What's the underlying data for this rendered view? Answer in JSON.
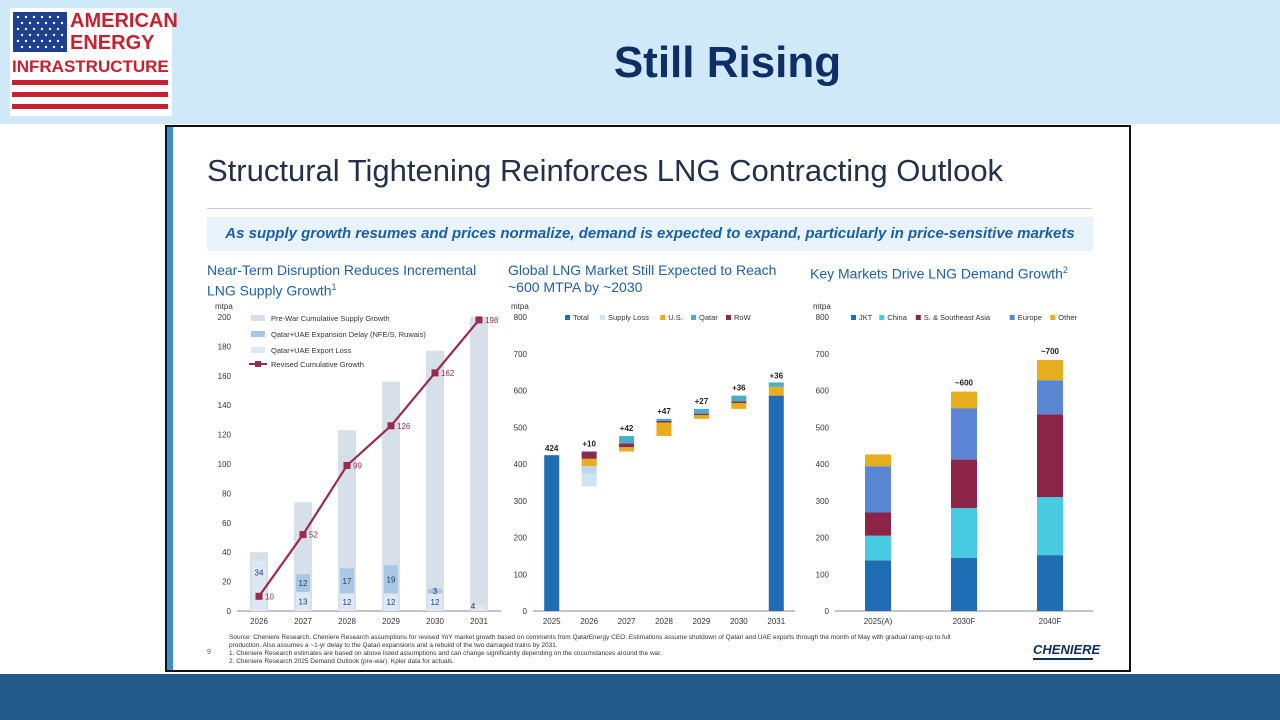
{
  "logo": {
    "line1": "AMERICAN",
    "line2": "ENERGY",
    "line3": "INFRASTRUCTURE"
  },
  "slide_title": "Still Rising",
  "frame": {
    "title": "Structural Tightening Reinforces LNG Contracting Outlook",
    "subtitle": "As supply growth resumes and prices normalize, demand is expected to expand, particularly in price-sensitive markets",
    "page_number": "9",
    "brand": "CHENIERE",
    "footnotes": [
      "Source:   Cheniere Research. Cheniere Research assumptions for revised YoY market growth based on comments from QatarEnergy CEO. Estimations assume shutdown of Qatari and UAE exports through the month of May with gradual ramp-up to full",
      "              production. Also assumes a ~1-yr delay to the Qatari expansions and a rebuild of the two damaged trains by 2031.",
      "1.           Cheniere Research estimates are based on above listed assumptions and can change significantly depending on the circumstances around the war.",
      "2.           Cheniere Research 2025 Demand Outlook (pre-war). Kpler data for actuals."
    ]
  },
  "chart_data": [
    {
      "type": "bar",
      "title_line1": "Near-Term Disruption Reduces Incremental",
      "title_line2": "LNG Supply Growth",
      "title_sup": "1",
      "ylabel": "mtpa",
      "ylim": [
        0,
        200
      ],
      "yticks": [
        0,
        20,
        40,
        60,
        80,
        100,
        120,
        140,
        160,
        180,
        200
      ],
      "categories": [
        "2026",
        "2027",
        "2028",
        "2029",
        "2030",
        "2031"
      ],
      "legend": [
        "Pre-War Cumulative Supply Growth",
        "Qatar+UAE Expansion Delay (NFE/S, Ruwais)",
        "Qatar+UAE Export Loss",
        "Revised Cumulative Growth"
      ],
      "series": [
        {
          "name": "Pre-War Cumulative Supply Growth",
          "values": [
            40,
            74,
            123,
            156,
            177,
            200
          ]
        },
        {
          "name": "Qatar+UAE Expansion Delay (NFE/S, Ruwais)",
          "values": [
            0,
            12,
            17,
            19,
            3,
            0
          ]
        },
        {
          "name": "Qatar+UAE Export Loss",
          "values": [
            34,
            13,
            12,
            12,
            12,
            4
          ]
        },
        {
          "name": "Revised Cumulative Growth",
          "values": [
            10,
            52,
            99,
            126,
            162,
            198
          ]
        }
      ],
      "bar_labels_delay": [
        "",
        "12",
        "17",
        "19",
        "3",
        ""
      ],
      "bar_labels_loss": [
        "34",
        "13",
        "12",
        "12",
        "12",
        "4"
      ],
      "line_labels": [
        "10",
        "52",
        "99",
        "126",
        "162",
        "198"
      ],
      "colors": {
        "prewar": "#d7dfe8",
        "delay": "#a9c6e3",
        "loss": "#dce8f5",
        "line": "#9b2a4f"
      }
    },
    {
      "type": "bar",
      "subtype": "waterfall",
      "title_line1": "Global LNG Market Still Expected to Reach",
      "title_line2": "~600 MTPA by ~2030",
      "ylabel": "mtpa",
      "ylim": [
        0,
        800
      ],
      "yticks": [
        0,
        100,
        200,
        300,
        400,
        500,
        600,
        700,
        800
      ],
      "categories": [
        "2025",
        "2026",
        "2027",
        "2028",
        "2029",
        "2030",
        "2031"
      ],
      "legend": [
        "Total",
        "Supply Loss",
        "U.S.",
        "Qatar",
        "RoW"
      ],
      "steps": [
        {
          "category": "2025",
          "kind": "total",
          "value": 424,
          "label": "424"
        },
        {
          "category": "2026",
          "base": 434,
          "parts": [
            {
              "series": "Supply Loss",
              "value": -75
            },
            {
              "series": "U.S.",
              "value": -20
            },
            {
              "series": "RoW",
              "value": -20
            },
            {
              "series": "Qatar",
              "value": 0
            }
          ],
          "label": "+10",
          "top": 434
        },
        {
          "category": "2027",
          "base": 434,
          "parts": [
            {
              "series": "U.S.",
              "value": 12
            },
            {
              "series": "RoW",
              "value": 10
            },
            {
              "series": "Qatar",
              "value": 20
            }
          ],
          "label": "+42",
          "top": 476
        },
        {
          "category": "2028",
          "base": 476,
          "parts": [
            {
              "series": "U.S.",
              "value": 37
            },
            {
              "series": "RoW",
              "value": 4
            },
            {
              "series": "Qatar",
              "value": 6
            }
          ],
          "label": "+47",
          "top": 523
        },
        {
          "category": "2029",
          "base": 523,
          "parts": [
            {
              "series": "U.S.",
              "value": 10
            },
            {
              "series": "RoW",
              "value": 4
            },
            {
              "series": "Qatar",
              "value": 13
            }
          ],
          "label": "+27",
          "top": 550
        },
        {
          "category": "2030",
          "base": 550,
          "parts": [
            {
              "series": "U.S.",
              "value": 16
            },
            {
              "series": "RoW",
              "value": 4
            },
            {
              "series": "Qatar",
              "value": 16
            }
          ],
          "label": "+36",
          "top": 586
        },
        {
          "category": "2031",
          "kind": "total",
          "value": 586,
          "extra": [
            {
              "series": "U.S.",
              "value": 24
            },
            {
              "series": "Qatar",
              "value": 12
            }
          ],
          "label": "+36"
        }
      ],
      "colors": {
        "Total": "#1f6db5",
        "Supply Loss": "#cfe3f3",
        "U.S.": "#e8ad1f",
        "Qatar": "#4aaec9",
        "RoW": "#8b2a4f"
      }
    },
    {
      "type": "bar",
      "subtype": "stacked",
      "title_line1": "Key Markets Drive LNG Demand Growth",
      "title_sup": "2",
      "ylabel": "mtpa",
      "ylim": [
        0,
        800
      ],
      "yticks": [
        0,
        100,
        200,
        300,
        400,
        500,
        600,
        700,
        800
      ],
      "categories": [
        "2025(A)",
        "2030F",
        "2040F"
      ],
      "series": [
        {
          "name": "JKT",
          "values": [
            138,
            145,
            152
          ]
        },
        {
          "name": "China",
          "values": [
            67,
            135,
            158
          ]
        },
        {
          "name": "S. & Southeast Asia",
          "values": [
            63,
            132,
            225
          ]
        },
        {
          "name": "Europe",
          "values": [
            126,
            140,
            93
          ]
        },
        {
          "name": "Other",
          "values": [
            32,
            45,
            55
          ]
        }
      ],
      "total_labels": [
        "",
        "~600",
        "~700"
      ],
      "colors": {
        "JKT": "#1f6db5",
        "China": "#46cbe0",
        "S. & Southeast Asia": "#8b2447",
        "Europe": "#5a86d4",
        "Other": "#e6ae1c"
      }
    }
  ]
}
